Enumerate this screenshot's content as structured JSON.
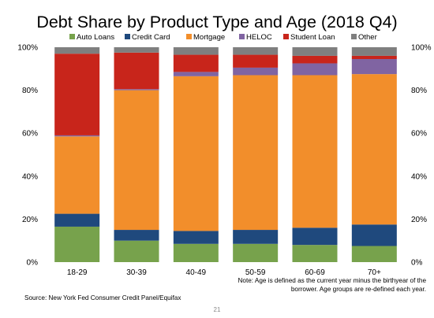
{
  "chart_data": {
    "type": "bar",
    "stacked": true,
    "title": "Debt Share by Product Type and Age (2018 Q4)",
    "categories": [
      "18-29",
      "30-39",
      "40-49",
      "50-59",
      "60-69",
      "70+"
    ],
    "series": [
      {
        "name": "Auto Loans",
        "color": "#77A24C",
        "values": [
          16.5,
          10,
          8.5,
          8.5,
          8,
          7.5
        ]
      },
      {
        "name": "Credit Card",
        "color": "#1F497D",
        "values": [
          6,
          5,
          6,
          6.5,
          8,
          10
        ]
      },
      {
        "name": "Mortgage",
        "color": "#F28E2B",
        "values": [
          36,
          65,
          72,
          72,
          71,
          70
        ]
      },
      {
        "name": "HELOC",
        "color": "#8064A2",
        "values": [
          0.5,
          0.5,
          2,
          3.5,
          5.5,
          7
        ]
      },
      {
        "name": "Student Loan",
        "color": "#C8251B",
        "values": [
          38,
          17,
          8,
          6,
          3.5,
          1.5
        ]
      },
      {
        "name": "Other",
        "color": "#7F7F7F",
        "values": [
          3,
          2.5,
          3.5,
          3.5,
          4,
          4
        ]
      }
    ],
    "ylim": [
      0,
      100
    ],
    "yticks": [
      "0%",
      "20%",
      "40%",
      "60%",
      "80%",
      "100%"
    ],
    "ytick_values": [
      0,
      20,
      40,
      60,
      80,
      100
    ],
    "secondary_y_axis": true,
    "grid": false,
    "legend_position": "top"
  },
  "note": {
    "line1": "Note: Age is defined as the current year minus the birthyear of the",
    "line2": "borrower. Age groups are re-defined each year."
  },
  "source": "Source: New York Fed Consumer Credit Panel/Equifax",
  "page_number": "21"
}
